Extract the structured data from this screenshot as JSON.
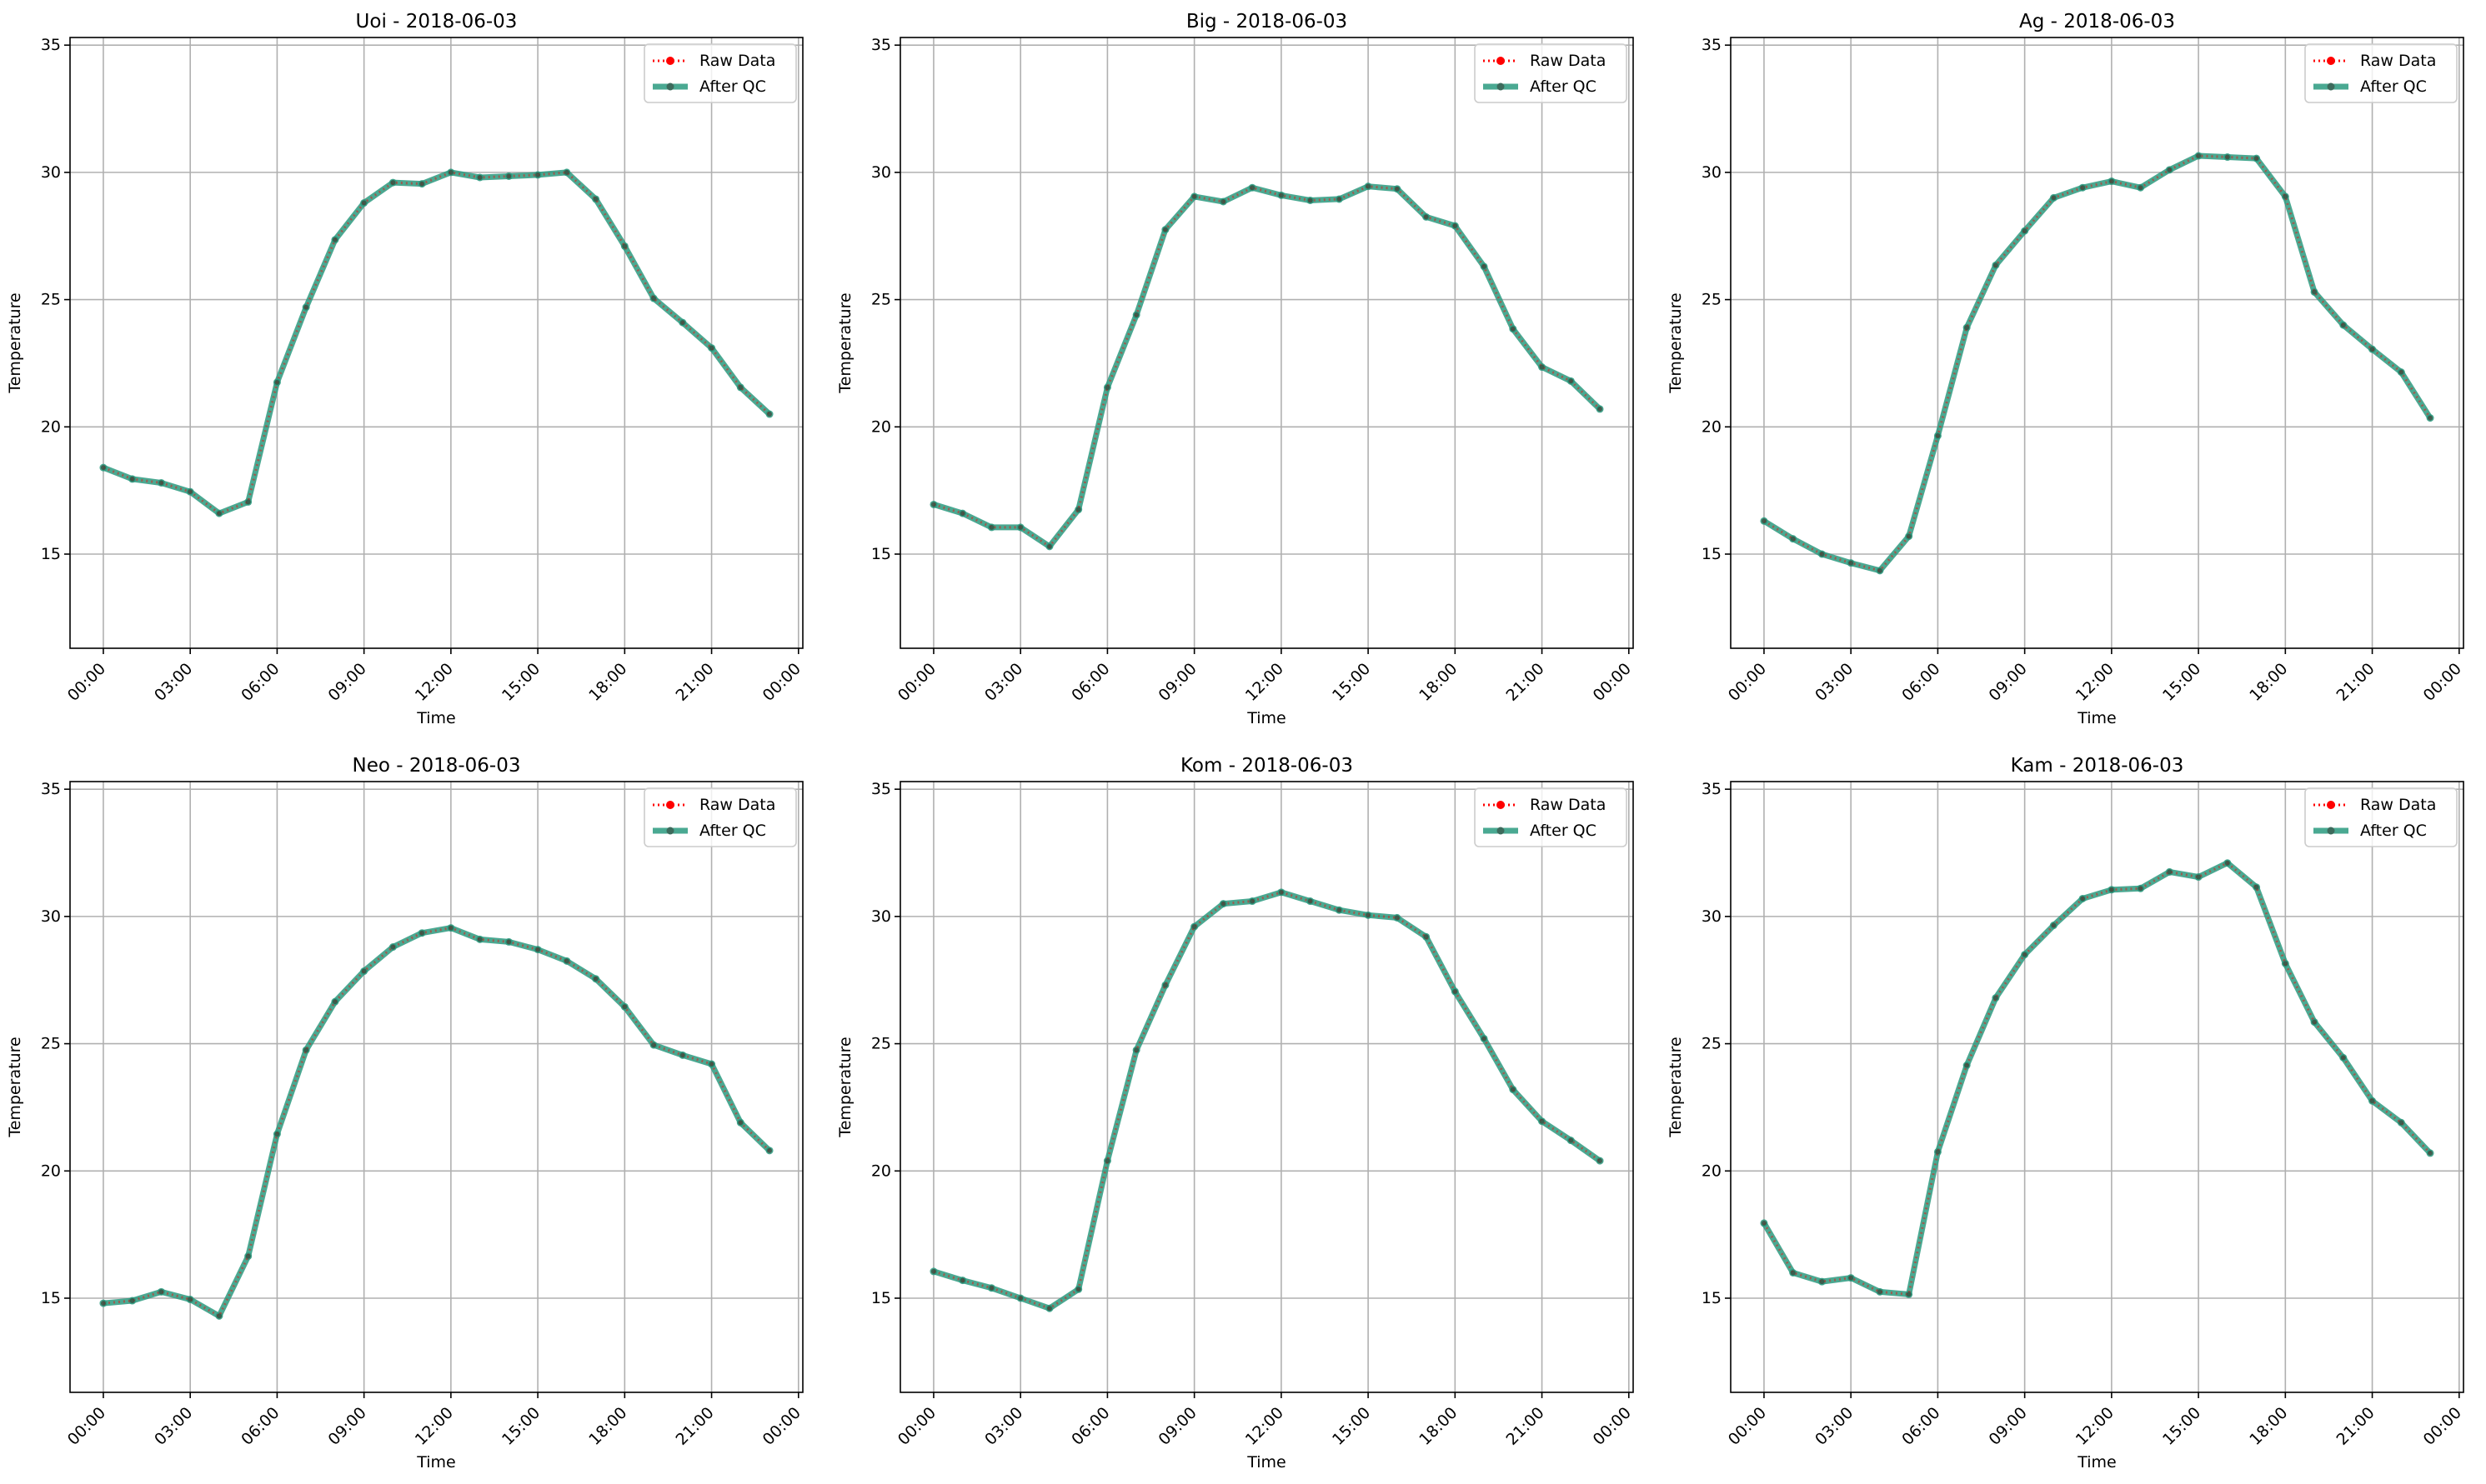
{
  "chart_data": [
    {
      "type": "line",
      "title": "Uoi - 2018-06-03",
      "xlabel": "Time",
      "ylabel": "Temperature",
      "x": [
        "00:00",
        "01:00",
        "02:00",
        "03:00",
        "04:00",
        "05:00",
        "06:00",
        "07:00",
        "08:00",
        "09:00",
        "10:00",
        "11:00",
        "12:00",
        "13:00",
        "14:00",
        "15:00",
        "16:00",
        "17:00",
        "18:00",
        "19:00",
        "20:00",
        "21:00",
        "22:00",
        "23:00"
      ],
      "xticks": [
        "00:00",
        "03:00",
        "06:00",
        "09:00",
        "12:00",
        "15:00",
        "18:00",
        "21:00",
        "00:00"
      ],
      "yticks": [
        15,
        20,
        25,
        30,
        35
      ],
      "ylim": [
        11.3,
        35.3
      ],
      "grid": true,
      "legend": "top-right",
      "series": [
        {
          "name": "Raw Data",
          "color": "#ff0000",
          "style": "dotted",
          "values": [
            18.4,
            17.95,
            17.8,
            17.45,
            16.6,
            17.05,
            21.75,
            24.7,
            27.35,
            28.8,
            29.6,
            29.55,
            30.0,
            29.8,
            29.85,
            29.9,
            30.0,
            28.95,
            27.1,
            25.05,
            24.1,
            23.1,
            21.55,
            20.5
          ]
        },
        {
          "name": "After QC",
          "color": "#2a9a7f",
          "style": "solid",
          "values": [
            18.4,
            17.95,
            17.8,
            17.45,
            16.6,
            17.05,
            21.75,
            24.7,
            27.35,
            28.8,
            29.6,
            29.55,
            30.0,
            29.8,
            29.85,
            29.9,
            30.0,
            28.95,
            27.1,
            25.05,
            24.1,
            23.1,
            21.55,
            20.5
          ]
        }
      ]
    },
    {
      "type": "line",
      "title": "Big - 2018-06-03",
      "xlabel": "Time",
      "ylabel": "Temperature",
      "x": [
        "00:00",
        "01:00",
        "02:00",
        "03:00",
        "04:00",
        "05:00",
        "06:00",
        "07:00",
        "08:00",
        "09:00",
        "10:00",
        "11:00",
        "12:00",
        "13:00",
        "14:00",
        "15:00",
        "16:00",
        "17:00",
        "18:00",
        "19:00",
        "20:00",
        "21:00",
        "22:00",
        "23:00"
      ],
      "xticks": [
        "00:00",
        "03:00",
        "06:00",
        "09:00",
        "12:00",
        "15:00",
        "18:00",
        "21:00",
        "00:00"
      ],
      "yticks": [
        15,
        20,
        25,
        30,
        35
      ],
      "ylim": [
        11.3,
        35.3
      ],
      "grid": true,
      "legend": "top-right",
      "series": [
        {
          "name": "Raw Data",
          "color": "#ff0000",
          "style": "dotted",
          "values": [
            16.95,
            16.6,
            16.05,
            16.05,
            15.3,
            16.75,
            21.55,
            24.4,
            27.75,
            29.05,
            28.85,
            29.4,
            29.1,
            28.9,
            28.95,
            29.45,
            29.35,
            28.25,
            27.9,
            26.3,
            23.85,
            22.35,
            21.8,
            20.7
          ]
        },
        {
          "name": "After QC",
          "color": "#2a9a7f",
          "style": "solid",
          "values": [
            16.95,
            16.6,
            16.05,
            16.05,
            15.3,
            16.75,
            21.55,
            24.4,
            27.75,
            29.05,
            28.85,
            29.4,
            29.1,
            28.9,
            28.95,
            29.45,
            29.35,
            28.25,
            27.9,
            26.3,
            23.85,
            22.35,
            21.8,
            20.7
          ]
        }
      ]
    },
    {
      "type": "line",
      "title": "Ag - 2018-06-03",
      "xlabel": "Time",
      "ylabel": "Temperature",
      "x": [
        "00:00",
        "01:00",
        "02:00",
        "03:00",
        "04:00",
        "05:00",
        "06:00",
        "07:00",
        "08:00",
        "09:00",
        "10:00",
        "11:00",
        "12:00",
        "13:00",
        "14:00",
        "15:00",
        "16:00",
        "17:00",
        "18:00",
        "19:00",
        "20:00",
        "21:00",
        "22:00",
        "23:00"
      ],
      "xticks": [
        "00:00",
        "03:00",
        "06:00",
        "09:00",
        "12:00",
        "15:00",
        "18:00",
        "21:00",
        "00:00"
      ],
      "yticks": [
        15,
        20,
        25,
        30,
        35
      ],
      "ylim": [
        11.3,
        35.3
      ],
      "grid": true,
      "legend": "top-right",
      "series": [
        {
          "name": "Raw Data",
          "color": "#ff0000",
          "style": "dotted",
          "values": [
            16.3,
            15.6,
            15.0,
            14.65,
            14.35,
            15.7,
            19.65,
            23.9,
            26.35,
            27.7,
            29.0,
            29.4,
            29.65,
            29.4,
            30.1,
            30.65,
            30.6,
            30.55,
            29.05,
            25.3,
            24.0,
            23.05,
            22.15,
            20.35
          ]
        },
        {
          "name": "After QC",
          "color": "#2a9a7f",
          "style": "solid",
          "values": [
            16.3,
            15.6,
            15.0,
            14.65,
            14.35,
            15.7,
            19.65,
            23.9,
            26.35,
            27.7,
            29.0,
            29.4,
            29.65,
            29.4,
            30.1,
            30.65,
            30.6,
            30.55,
            29.05,
            25.3,
            24.0,
            23.05,
            22.15,
            20.35
          ]
        }
      ]
    },
    {
      "type": "line",
      "title": "Neo - 2018-06-03",
      "xlabel": "Time",
      "ylabel": "Temperature",
      "x": [
        "00:00",
        "01:00",
        "02:00",
        "03:00",
        "04:00",
        "05:00",
        "06:00",
        "07:00",
        "08:00",
        "09:00",
        "10:00",
        "11:00",
        "12:00",
        "13:00",
        "14:00",
        "15:00",
        "16:00",
        "17:00",
        "18:00",
        "19:00",
        "20:00",
        "21:00",
        "22:00",
        "23:00"
      ],
      "xticks": [
        "00:00",
        "03:00",
        "06:00",
        "09:00",
        "12:00",
        "15:00",
        "18:00",
        "21:00",
        "00:00"
      ],
      "yticks": [
        15,
        20,
        25,
        30,
        35
      ],
      "ylim": [
        11.3,
        35.3
      ],
      "grid": true,
      "legend": "top-right",
      "series": [
        {
          "name": "Raw Data",
          "color": "#ff0000",
          "style": "dotted",
          "values": [
            14.8,
            14.9,
            15.25,
            14.95,
            14.3,
            16.65,
            21.45,
            24.75,
            26.65,
            27.85,
            28.8,
            29.35,
            29.55,
            29.1,
            29.0,
            28.7,
            28.25,
            27.55,
            26.45,
            24.95,
            24.55,
            24.2,
            21.9,
            20.8
          ]
        },
        {
          "name": "After QC",
          "color": "#2a9a7f",
          "style": "solid",
          "values": [
            14.8,
            14.9,
            15.25,
            14.95,
            14.3,
            16.65,
            21.45,
            24.75,
            26.65,
            27.85,
            28.8,
            29.35,
            29.55,
            29.1,
            29.0,
            28.7,
            28.25,
            27.55,
            26.45,
            24.95,
            24.55,
            24.2,
            21.9,
            20.8
          ]
        }
      ]
    },
    {
      "type": "line",
      "title": "Kom - 2018-06-03",
      "xlabel": "Time",
      "ylabel": "Temperature",
      "x": [
        "00:00",
        "01:00",
        "02:00",
        "03:00",
        "04:00",
        "05:00",
        "06:00",
        "07:00",
        "08:00",
        "09:00",
        "10:00",
        "11:00",
        "12:00",
        "13:00",
        "14:00",
        "15:00",
        "16:00",
        "17:00",
        "18:00",
        "19:00",
        "20:00",
        "21:00",
        "22:00",
        "23:00"
      ],
      "xticks": [
        "00:00",
        "03:00",
        "06:00",
        "09:00",
        "12:00",
        "15:00",
        "18:00",
        "21:00",
        "00:00"
      ],
      "yticks": [
        15,
        20,
        25,
        30,
        35
      ],
      "ylim": [
        11.3,
        35.3
      ],
      "grid": true,
      "legend": "top-right",
      "series": [
        {
          "name": "Raw Data",
          "color": "#ff0000",
          "style": "dotted",
          "values": [
            16.05,
            15.7,
            15.4,
            15.0,
            14.6,
            15.35,
            20.4,
            24.75,
            27.3,
            29.6,
            30.5,
            30.6,
            30.95,
            30.6,
            30.25,
            30.05,
            29.95,
            29.2,
            27.05,
            25.2,
            23.2,
            21.95,
            21.2,
            20.4
          ]
        },
        {
          "name": "After QC",
          "color": "#2a9a7f",
          "style": "solid",
          "values": [
            16.05,
            15.7,
            15.4,
            15.0,
            14.6,
            15.35,
            20.4,
            24.75,
            27.3,
            29.6,
            30.5,
            30.6,
            30.95,
            30.6,
            30.25,
            30.05,
            29.95,
            29.2,
            27.05,
            25.2,
            23.2,
            21.95,
            21.2,
            20.4
          ]
        }
      ]
    },
    {
      "type": "line",
      "title": "Kam - 2018-06-03",
      "xlabel": "Time",
      "ylabel": "Temperature",
      "x": [
        "00:00",
        "01:00",
        "02:00",
        "03:00",
        "04:00",
        "05:00",
        "06:00",
        "07:00",
        "08:00",
        "09:00",
        "10:00",
        "11:00",
        "12:00",
        "13:00",
        "14:00",
        "15:00",
        "16:00",
        "17:00",
        "18:00",
        "19:00",
        "20:00",
        "21:00",
        "22:00",
        "23:00"
      ],
      "xticks": [
        "00:00",
        "03:00",
        "06:00",
        "09:00",
        "12:00",
        "15:00",
        "18:00",
        "21:00",
        "00:00"
      ],
      "yticks": [
        15,
        20,
        25,
        30,
        35
      ],
      "ylim": [
        11.3,
        35.3
      ],
      "grid": true,
      "legend": "top-right",
      "series": [
        {
          "name": "Raw Data",
          "color": "#ff0000",
          "style": "dotted",
          "values": [
            17.95,
            16.0,
            15.65,
            15.8,
            15.25,
            15.15,
            20.75,
            24.15,
            26.8,
            28.5,
            29.65,
            30.7,
            31.05,
            31.1,
            31.75,
            31.55,
            32.1,
            31.15,
            28.15,
            25.85,
            24.45,
            22.75,
            21.9,
            20.7
          ]
        },
        {
          "name": "After QC",
          "color": "#2a9a7f",
          "style": "solid",
          "values": [
            17.95,
            16.0,
            15.65,
            15.8,
            15.25,
            15.15,
            20.75,
            24.15,
            26.8,
            28.5,
            29.65,
            30.7,
            31.05,
            31.1,
            31.75,
            31.55,
            32.1,
            31.15,
            28.15,
            25.85,
            24.45,
            22.75,
            21.9,
            20.7
          ]
        }
      ]
    }
  ]
}
